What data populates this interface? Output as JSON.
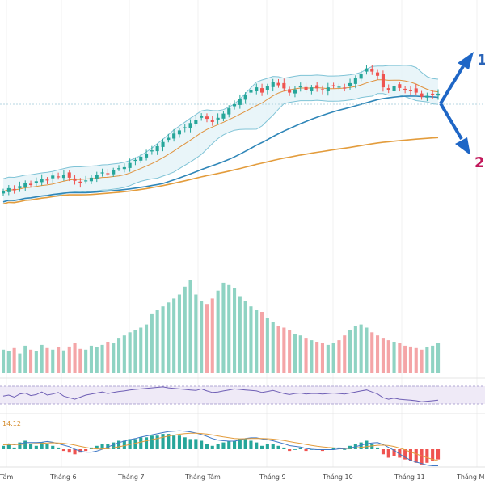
{
  "colors": {
    "bull": "#26a69a",
    "bear": "#ef5350",
    "vol_bull": "#8fd3c3",
    "vol_bear": "#f4a5a7",
    "bb_band": "#7fc3d6",
    "bb_fill": "#e7f4f8",
    "bb_mid": "#e0923d",
    "ma_long": "#e39c3c",
    "ma_mid": "#2f86b8",
    "rsi_line": "#6f5fb5",
    "rsi_fill": "#efeaf7",
    "macd_line": "#3f78c6",
    "signal_line": "#e39c3c",
    "arrow": "#1e66c6",
    "label1": "#2a64b8",
    "label2": "#c2185b"
  },
  "x_axis": {
    "labels": [
      "Tám",
      "Tháng 6",
      "Tháng 7",
      "Tháng Tám",
      "Tháng 9",
      "Tháng 10",
      "Tháng 11",
      "Tháng Mười"
    ]
  },
  "macd_panel": {
    "value_label": "14.12"
  },
  "scenarios": {
    "up_label": "1",
    "down_label": "2"
  },
  "chart_data": {
    "type": "candlestick",
    "price": {
      "closes": [
        0.32,
        0.335,
        0.325,
        0.345,
        0.36,
        0.35,
        0.368,
        0.38,
        0.372,
        0.395,
        0.388,
        0.4,
        0.385,
        0.37,
        0.358,
        0.372,
        0.385,
        0.398,
        0.41,
        0.405,
        0.42,
        0.43,
        0.435,
        0.455,
        0.47,
        0.485,
        0.5,
        0.515,
        0.535,
        0.555,
        0.575,
        0.595,
        0.61,
        0.625,
        0.645,
        0.66,
        0.68,
        0.665,
        0.65,
        0.67,
        0.69,
        0.715,
        0.735,
        0.76,
        0.78,
        0.8,
        0.815,
        0.79,
        0.82,
        0.84,
        0.825,
        0.81,
        0.79,
        0.805,
        0.82,
        0.8,
        0.815,
        0.81,
        0.8,
        0.815,
        0.822,
        0.818,
        0.812,
        0.835,
        0.86,
        0.88,
        0.905,
        0.89,
        0.87,
        0.815,
        0.8,
        0.82,
        0.812,
        0.805,
        0.8,
        0.79,
        0.77,
        0.775,
        0.78,
        0.785
      ]
    },
    "volume": {
      "values": [
        30,
        28,
        32,
        25,
        35,
        30,
        28,
        36,
        32,
        30,
        33,
        29,
        34,
        38,
        31,
        30,
        35,
        33,
        36,
        40,
        38,
        45,
        48,
        52,
        55,
        58,
        62,
        75,
        80,
        85,
        90,
        95,
        100,
        110,
        118,
        100,
        92,
        88,
        95,
        105,
        115,
        112,
        108,
        98,
        92,
        85,
        80,
        78,
        70,
        65,
        60,
        58,
        55,
        50,
        48,
        45,
        42,
        40,
        38,
        36,
        38,
        42,
        48,
        55,
        60,
        62,
        58,
        52,
        48,
        45,
        42,
        40,
        38,
        35,
        34,
        32,
        30,
        33,
        35,
        38
      ]
    },
    "rsi": {
      "values": [
        58,
        60,
        56,
        62,
        64,
        59,
        61,
        66,
        60,
        62,
        65,
        58,
        55,
        52,
        56,
        60,
        62,
        64,
        66,
        63,
        65,
        67,
        68,
        70,
        71,
        72,
        73,
        74,
        75,
        76,
        74,
        73,
        72,
        71,
        70,
        69,
        72,
        68,
        65,
        66,
        68,
        70,
        72,
        71,
        70,
        69,
        68,
        65,
        67,
        69,
        66,
        63,
        61,
        63,
        64,
        62,
        63,
        63,
        62,
        63,
        64,
        63,
        62,
        64,
        66,
        68,
        70,
        66,
        62,
        55,
        52,
        54,
        52,
        51,
        50,
        49,
        47,
        48,
        49,
        50
      ],
      "upper": 70,
      "lower": 30
    },
    "macd": {
      "hist": [
        2,
        3,
        1,
        4,
        5,
        3,
        2,
        4,
        3,
        2,
        1,
        -1,
        -2,
        -3,
        -2,
        -1,
        1,
        2,
        3,
        3,
        4,
        5,
        5,
        6,
        6,
        7,
        7,
        8,
        8,
        9,
        9,
        8,
        8,
        7,
        6,
        6,
        5,
        3,
        2,
        3,
        4,
        5,
        5,
        6,
        6,
        5,
        4,
        2,
        3,
        3,
        2,
        1,
        -1,
        0,
        1,
        -1,
        0,
        0,
        -1,
        0,
        1,
        1,
        0,
        2,
        3,
        4,
        5,
        3,
        1,
        -3,
        -5,
        -4,
        -5,
        -6,
        -7,
        -8,
        -9,
        -8,
        -7,
        -6
      ]
    }
  }
}
